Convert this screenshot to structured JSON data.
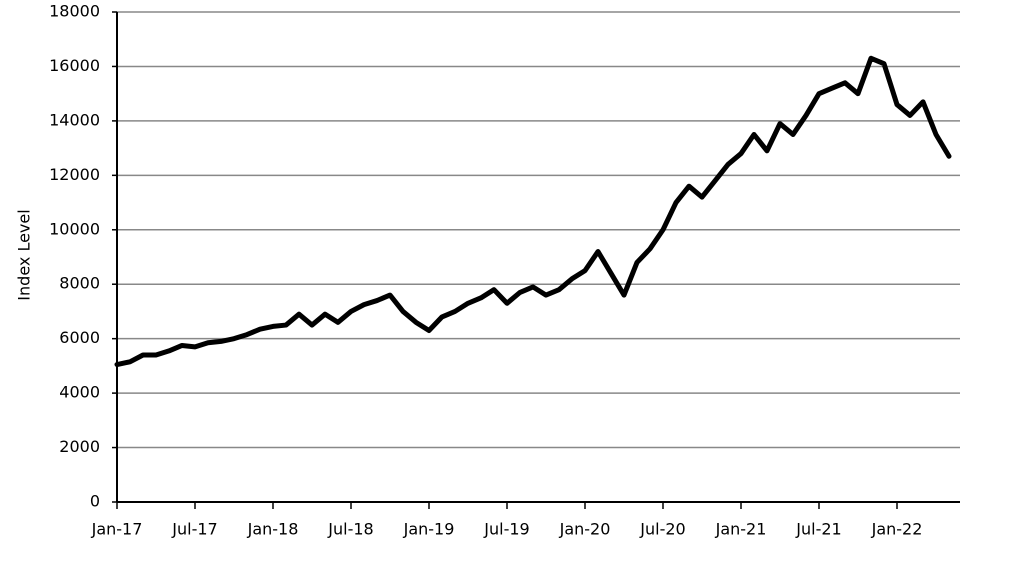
{
  "chart_data": {
    "type": "line",
    "y_label": "Index Level",
    "categories": [
      "Jan-17",
      null,
      null,
      null,
      null,
      null,
      "Jul-17",
      null,
      null,
      null,
      null,
      null,
      "Jan-18",
      null,
      null,
      null,
      null,
      null,
      "Jul-18",
      null,
      null,
      null,
      null,
      null,
      "Jan-19",
      null,
      null,
      null,
      null,
      null,
      "Jul-19",
      null,
      null,
      null,
      null,
      null,
      "Jan-20",
      null,
      null,
      null,
      null,
      null,
      "Jul-20",
      null,
      null,
      null,
      null,
      null,
      "Jan-21",
      null,
      null,
      null,
      null,
      null,
      "Jul-21",
      null,
      null,
      null,
      null,
      null,
      "Jan-22",
      null,
      null,
      null,
      null
    ],
    "values": [
      5050,
      5150,
      5400,
      5400,
      5550,
      5750,
      5700,
      5850,
      5900,
      6000,
      6150,
      6350,
      6450,
      6500,
      6900,
      6500,
      6900,
      6600,
      7000,
      7250,
      7400,
      7600,
      7000,
      6600,
      6300,
      6800,
      7000,
      7300,
      7500,
      7800,
      7300,
      7700,
      7900,
      7600,
      7800,
      8200,
      8500,
      9200,
      8400,
      7600,
      8800,
      9300,
      10000,
      11000,
      11600,
      11200,
      11800,
      12400,
      12800,
      13500,
      12900,
      13900,
      13500,
      14200,
      15000,
      15200,
      15400,
      15000,
      16300,
      16100,
      14600,
      14200,
      14700,
      13500,
      12700
    ],
    "color": "#000000",
    "ylim": [
      0,
      18000
    ],
    "yticks": [
      0,
      2000,
      4000,
      6000,
      8000,
      10000,
      12000,
      14000,
      16000,
      18000
    ],
    "grid": true
  }
}
